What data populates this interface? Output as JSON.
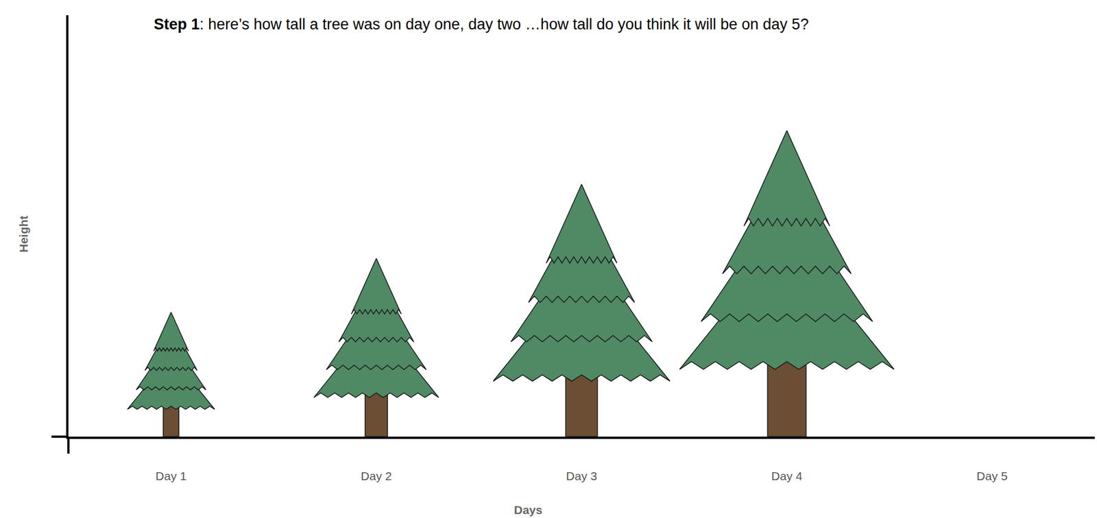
{
  "chart_data": {
    "type": "bar",
    "marker": "tree",
    "title": "Step 1: here’s how tall a tree was on day one, day two …how tall do you think it will be on day 5?",
    "x_label": "Days",
    "y_label": "Height",
    "categories": [
      "Day 1",
      "Day 2",
      "Day 3",
      "Day 4",
      "Day 5"
    ],
    "values": [
      178,
      255,
      361,
      438,
      null
    ],
    "color": "#4f8a64",
    "ylim": [
      0,
      603
    ],
    "yticks": [],
    "tick_labels": "x",
    "grid": false
  }
}
